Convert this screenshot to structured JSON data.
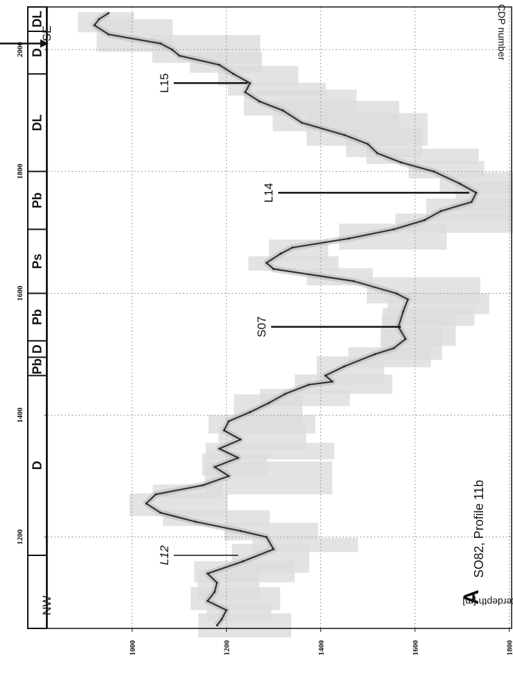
{
  "chart_data": {
    "type": "line",
    "title": "SO82, Profile 11b",
    "panel_label": "A",
    "xlabel": "CDP number",
    "ylabel": "Waterdepth [m]",
    "xlim": [
      1050,
      2070
    ],
    "ylim": [
      820,
      1805
    ],
    "x_ticks": [
      1200,
      1400,
      1600,
      1800,
      2000
    ],
    "y_ticks": [
      1000,
      1200,
      1400,
      1600,
      1800
    ],
    "grid": true,
    "orientation_labels": {
      "left": "NW",
      "right": "SE"
    },
    "profile": [
      [
        1055,
        1180
      ],
      [
        1065,
        1190
      ],
      [
        1080,
        1200
      ],
      [
        1095,
        1160
      ],
      [
        1110,
        1175
      ],
      [
        1125,
        1180
      ],
      [
        1140,
        1160
      ],
      [
        1160,
        1235
      ],
      [
        1180,
        1300
      ],
      [
        1200,
        1285
      ],
      [
        1210,
        1230
      ],
      [
        1225,
        1135
      ],
      [
        1240,
        1060
      ],
      [
        1255,
        1030
      ],
      [
        1270,
        1050
      ],
      [
        1285,
        1150
      ],
      [
        1300,
        1205
      ],
      [
        1315,
        1175
      ],
      [
        1330,
        1225
      ],
      [
        1345,
        1185
      ],
      [
        1360,
        1230
      ],
      [
        1375,
        1195
      ],
      [
        1390,
        1205
      ],
      [
        1405,
        1250
      ],
      [
        1420,
        1290
      ],
      [
        1435,
        1325
      ],
      [
        1450,
        1375
      ],
      [
        1455,
        1425
      ],
      [
        1465,
        1410
      ],
      [
        1480,
        1450
      ],
      [
        1500,
        1515
      ],
      [
        1510,
        1555
      ],
      [
        1525,
        1580
      ],
      [
        1545,
        1565
      ],
      [
        1570,
        1575
      ],
      [
        1590,
        1585
      ],
      [
        1600,
        1560
      ],
      [
        1620,
        1470
      ],
      [
        1640,
        1300
      ],
      [
        1650,
        1285
      ],
      [
        1665,
        1315
      ],
      [
        1675,
        1340
      ],
      [
        1690,
        1460
      ],
      [
        1705,
        1555
      ],
      [
        1720,
        1620
      ],
      [
        1735,
        1655
      ],
      [
        1750,
        1720
      ],
      [
        1765,
        1730
      ],
      [
        1780,
        1695
      ],
      [
        1800,
        1640
      ],
      [
        1815,
        1570
      ],
      [
        1830,
        1520
      ],
      [
        1845,
        1500
      ],
      [
        1860,
        1450
      ],
      [
        1880,
        1360
      ],
      [
        1900,
        1320
      ],
      [
        1915,
        1270
      ],
      [
        1930,
        1240
      ],
      [
        1945,
        1250
      ],
      [
        1960,
        1215
      ],
      [
        1975,
        1185
      ],
      [
        1990,
        1100
      ],
      [
        2000,
        1085
      ],
      [
        2010,
        1060
      ],
      [
        2025,
        950
      ],
      [
        2040,
        920
      ],
      [
        2050,
        930
      ],
      [
        2060,
        950
      ]
    ],
    "annotations": [
      {
        "label": "L12",
        "cdp": 1170,
        "depth": 1225
      },
      {
        "label": "S07",
        "cdp": 1545,
        "depth": 1570
      },
      {
        "label": "L14",
        "cdp": 1765,
        "depth": 1715
      },
      {
        "label": "L15",
        "cdp": 1945,
        "depth": 1245
      }
    ],
    "facies_bar": [
      {
        "label": "",
        "cdp_from": 1050,
        "cdp_to": 1170
      },
      {
        "label": "D",
        "cdp_from": 1170,
        "cdp_to": 1465
      },
      {
        "label": "Pb",
        "cdp_from": 1465,
        "cdp_to": 1495
      },
      {
        "label": "D",
        "cdp_from": 1495,
        "cdp_to": 1522
      },
      {
        "label": "Pb",
        "cdp_from": 1522,
        "cdp_to": 1600
      },
      {
        "label": "Ps",
        "cdp_from": 1600,
        "cdp_to": 1705
      },
      {
        "label": "Pb",
        "cdp_from": 1705,
        "cdp_to": 1800
      },
      {
        "label": "DL",
        "cdp_from": 1800,
        "cdp_to": 1960
      },
      {
        "label": "D",
        "cdp_from": 1960,
        "cdp_to": 2030
      },
      {
        "label": "DL",
        "cdp_from": 2030,
        "cdp_to": 2070
      }
    ],
    "marker": {
      "cdp": 2010,
      "label": "CDP number"
    }
  }
}
